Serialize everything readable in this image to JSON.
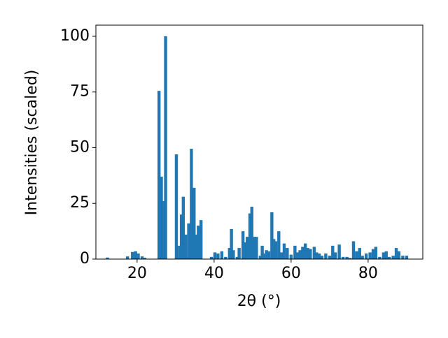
{
  "chart_data": {
    "type": "bar",
    "xlabel": "2θ (°)",
    "ylabel": "Intensities (scaled)",
    "color": "#1f77b4",
    "bar_width": 0.8,
    "x": [
      12.3,
      17.5,
      18.8,
      19.6,
      20.3,
      21.3,
      22,
      25.7,
      26.3,
      26.8,
      27.4,
      30.2,
      31.0,
      31.5,
      32.0,
      32.6,
      33.4,
      34.1,
      34.8,
      35.3,
      35.9,
      36.6,
      39.3,
      40.2,
      41,
      42,
      43,
      44,
      44.5,
      45,
      46,
      46.5,
      47.5,
      48,
      48.6,
      49.3,
      49.8,
      50.5,
      51,
      52,
      52.5,
      53,
      53.6,
      54.2,
      55,
      55.5,
      56,
      56.8,
      57.5,
      58.2,
      59,
      60,
      61,
      61.7,
      62.3,
      63,
      63.7,
      64.3,
      65,
      66,
      66.6,
      67.3,
      68,
      69,
      70,
      70.8,
      71.5,
      72.5,
      73.5,
      74.5,
      75.3,
      76.2,
      77,
      77.8,
      78.5,
      79.5,
      80.5,
      81.3,
      82,
      83,
      84,
      84.7,
      85.5,
      86.5,
      87.3,
      88,
      89,
      90
    ],
    "values": [
      0.7,
      1.2,
      3.2,
      3.5,
      2.5,
      1.2,
      0.6,
      75.5,
      37,
      26,
      100,
      47,
      6,
      20,
      28,
      11,
      16,
      49.5,
      32,
      11,
      15,
      17.5,
      1,
      3,
      2.5,
      3.5,
      1,
      5,
      13.5,
      4,
      1,
      5,
      12.5,
      7.5,
      10,
      20.5,
      23.5,
      10,
      10,
      1.5,
      6,
      2.5,
      4,
      3.5,
      21,
      9,
      8,
      12.5,
      3,
      7,
      5,
      2,
      6,
      3,
      4,
      5.5,
      7,
      5,
      4.5,
      5.5,
      3,
      2.5,
      1.5,
      2.5,
      1.5,
      6,
      3,
      6.5,
      1,
      1,
      0.5,
      8,
      3.5,
      5,
      1.5,
      2.5,
      3,
      4.5,
      5.5,
      1,
      3,
      3.5,
      1,
      1.5,
      5,
      3.5,
      1.5,
      1.5
    ],
    "xlim": [
      9.3,
      94.2
    ],
    "ylim": [
      0,
      105
    ],
    "xticks": [
      20,
      40,
      60,
      80
    ],
    "yticks": [
      0,
      25,
      50,
      75,
      100
    ]
  }
}
